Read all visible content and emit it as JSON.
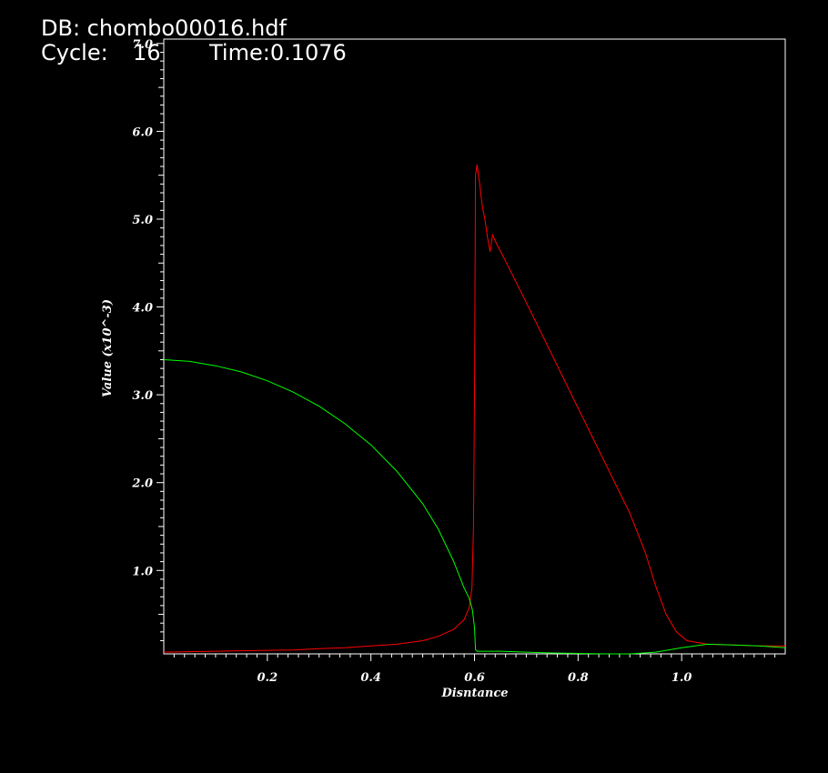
{
  "header": {
    "db_line": "DB: chombo00016.hdf",
    "cycle_label": "Cycle:",
    "cycle_value": "16",
    "time_label": "Time:0.1076"
  },
  "colors": {
    "background": "#000000",
    "axes": "#ffffff",
    "series_red": "#ff0000",
    "series_green": "#00ff00"
  },
  "chart_data": {
    "type": "line",
    "title": "",
    "xlabel": "Disntance",
    "ylabel": "Value (x10^-3)",
    "xlim": [
      0.0,
      1.2
    ],
    "ylim": [
      0.05,
      7.05
    ],
    "x_ticks": [
      0.2,
      0.4,
      0.6,
      0.8,
      1.0
    ],
    "x_tick_labels": [
      "0.2",
      "0.4",
      "0.6",
      "0.8",
      "1.0"
    ],
    "y_ticks": [
      1.0,
      2.0,
      3.0,
      4.0,
      5.0,
      6.0,
      7.0
    ],
    "y_tick_labels": [
      "1.0",
      "2.0",
      "3.0",
      "4.0",
      "5.0",
      "6.0",
      "7.0"
    ],
    "grid": false,
    "legend": "none",
    "series": [
      {
        "color": "#ff0000",
        "points": [
          [
            0.0,
            0.07
          ],
          [
            0.05,
            0.075
          ],
          [
            0.1,
            0.08
          ],
          [
            0.15,
            0.085
          ],
          [
            0.2,
            0.09
          ],
          [
            0.25,
            0.095
          ],
          [
            0.3,
            0.11
          ],
          [
            0.35,
            0.12
          ],
          [
            0.4,
            0.14
          ],
          [
            0.45,
            0.16
          ],
          [
            0.5,
            0.2
          ],
          [
            0.53,
            0.25
          ],
          [
            0.56,
            0.33
          ],
          [
            0.58,
            0.44
          ],
          [
            0.59,
            0.58
          ],
          [
            0.595,
            0.8
          ],
          [
            0.598,
            1.5
          ],
          [
            0.6,
            3.0
          ],
          [
            0.602,
            5.5
          ],
          [
            0.605,
            5.62
          ],
          [
            0.61,
            5.4
          ],
          [
            0.615,
            5.15
          ],
          [
            0.62,
            5.0
          ],
          [
            0.625,
            4.8
          ],
          [
            0.63,
            4.63
          ],
          [
            0.635,
            4.82
          ],
          [
            0.64,
            4.75
          ],
          [
            0.66,
            4.52
          ],
          [
            0.7,
            4.05
          ],
          [
            0.75,
            3.45
          ],
          [
            0.8,
            2.85
          ],
          [
            0.85,
            2.25
          ],
          [
            0.9,
            1.65
          ],
          [
            0.93,
            1.2
          ],
          [
            0.95,
            0.82
          ],
          [
            0.97,
            0.5
          ],
          [
            0.99,
            0.3
          ],
          [
            1.01,
            0.2
          ],
          [
            1.05,
            0.16
          ],
          [
            1.1,
            0.15
          ],
          [
            1.15,
            0.14
          ],
          [
            1.2,
            0.14
          ]
        ]
      },
      {
        "color": "#00ff00",
        "points": [
          [
            0.0,
            3.4
          ],
          [
            0.05,
            3.38
          ],
          [
            0.1,
            3.33
          ],
          [
            0.15,
            3.26
          ],
          [
            0.2,
            3.16
          ],
          [
            0.25,
            3.03
          ],
          [
            0.3,
            2.87
          ],
          [
            0.35,
            2.67
          ],
          [
            0.4,
            2.43
          ],
          [
            0.45,
            2.13
          ],
          [
            0.5,
            1.76
          ],
          [
            0.53,
            1.47
          ],
          [
            0.56,
            1.1
          ],
          [
            0.58,
            0.8
          ],
          [
            0.59,
            0.68
          ],
          [
            0.596,
            0.55
          ],
          [
            0.6,
            0.35
          ],
          [
            0.602,
            0.1
          ],
          [
            0.605,
            0.08
          ],
          [
            0.65,
            0.08
          ],
          [
            0.7,
            0.07
          ],
          [
            0.75,
            0.06
          ],
          [
            0.8,
            0.055
          ],
          [
            0.85,
            0.05
          ],
          [
            0.9,
            0.05
          ],
          [
            0.95,
            0.07
          ],
          [
            1.0,
            0.12
          ],
          [
            1.05,
            0.16
          ],
          [
            1.1,
            0.15
          ],
          [
            1.15,
            0.14
          ],
          [
            1.2,
            0.12
          ]
        ]
      }
    ]
  }
}
